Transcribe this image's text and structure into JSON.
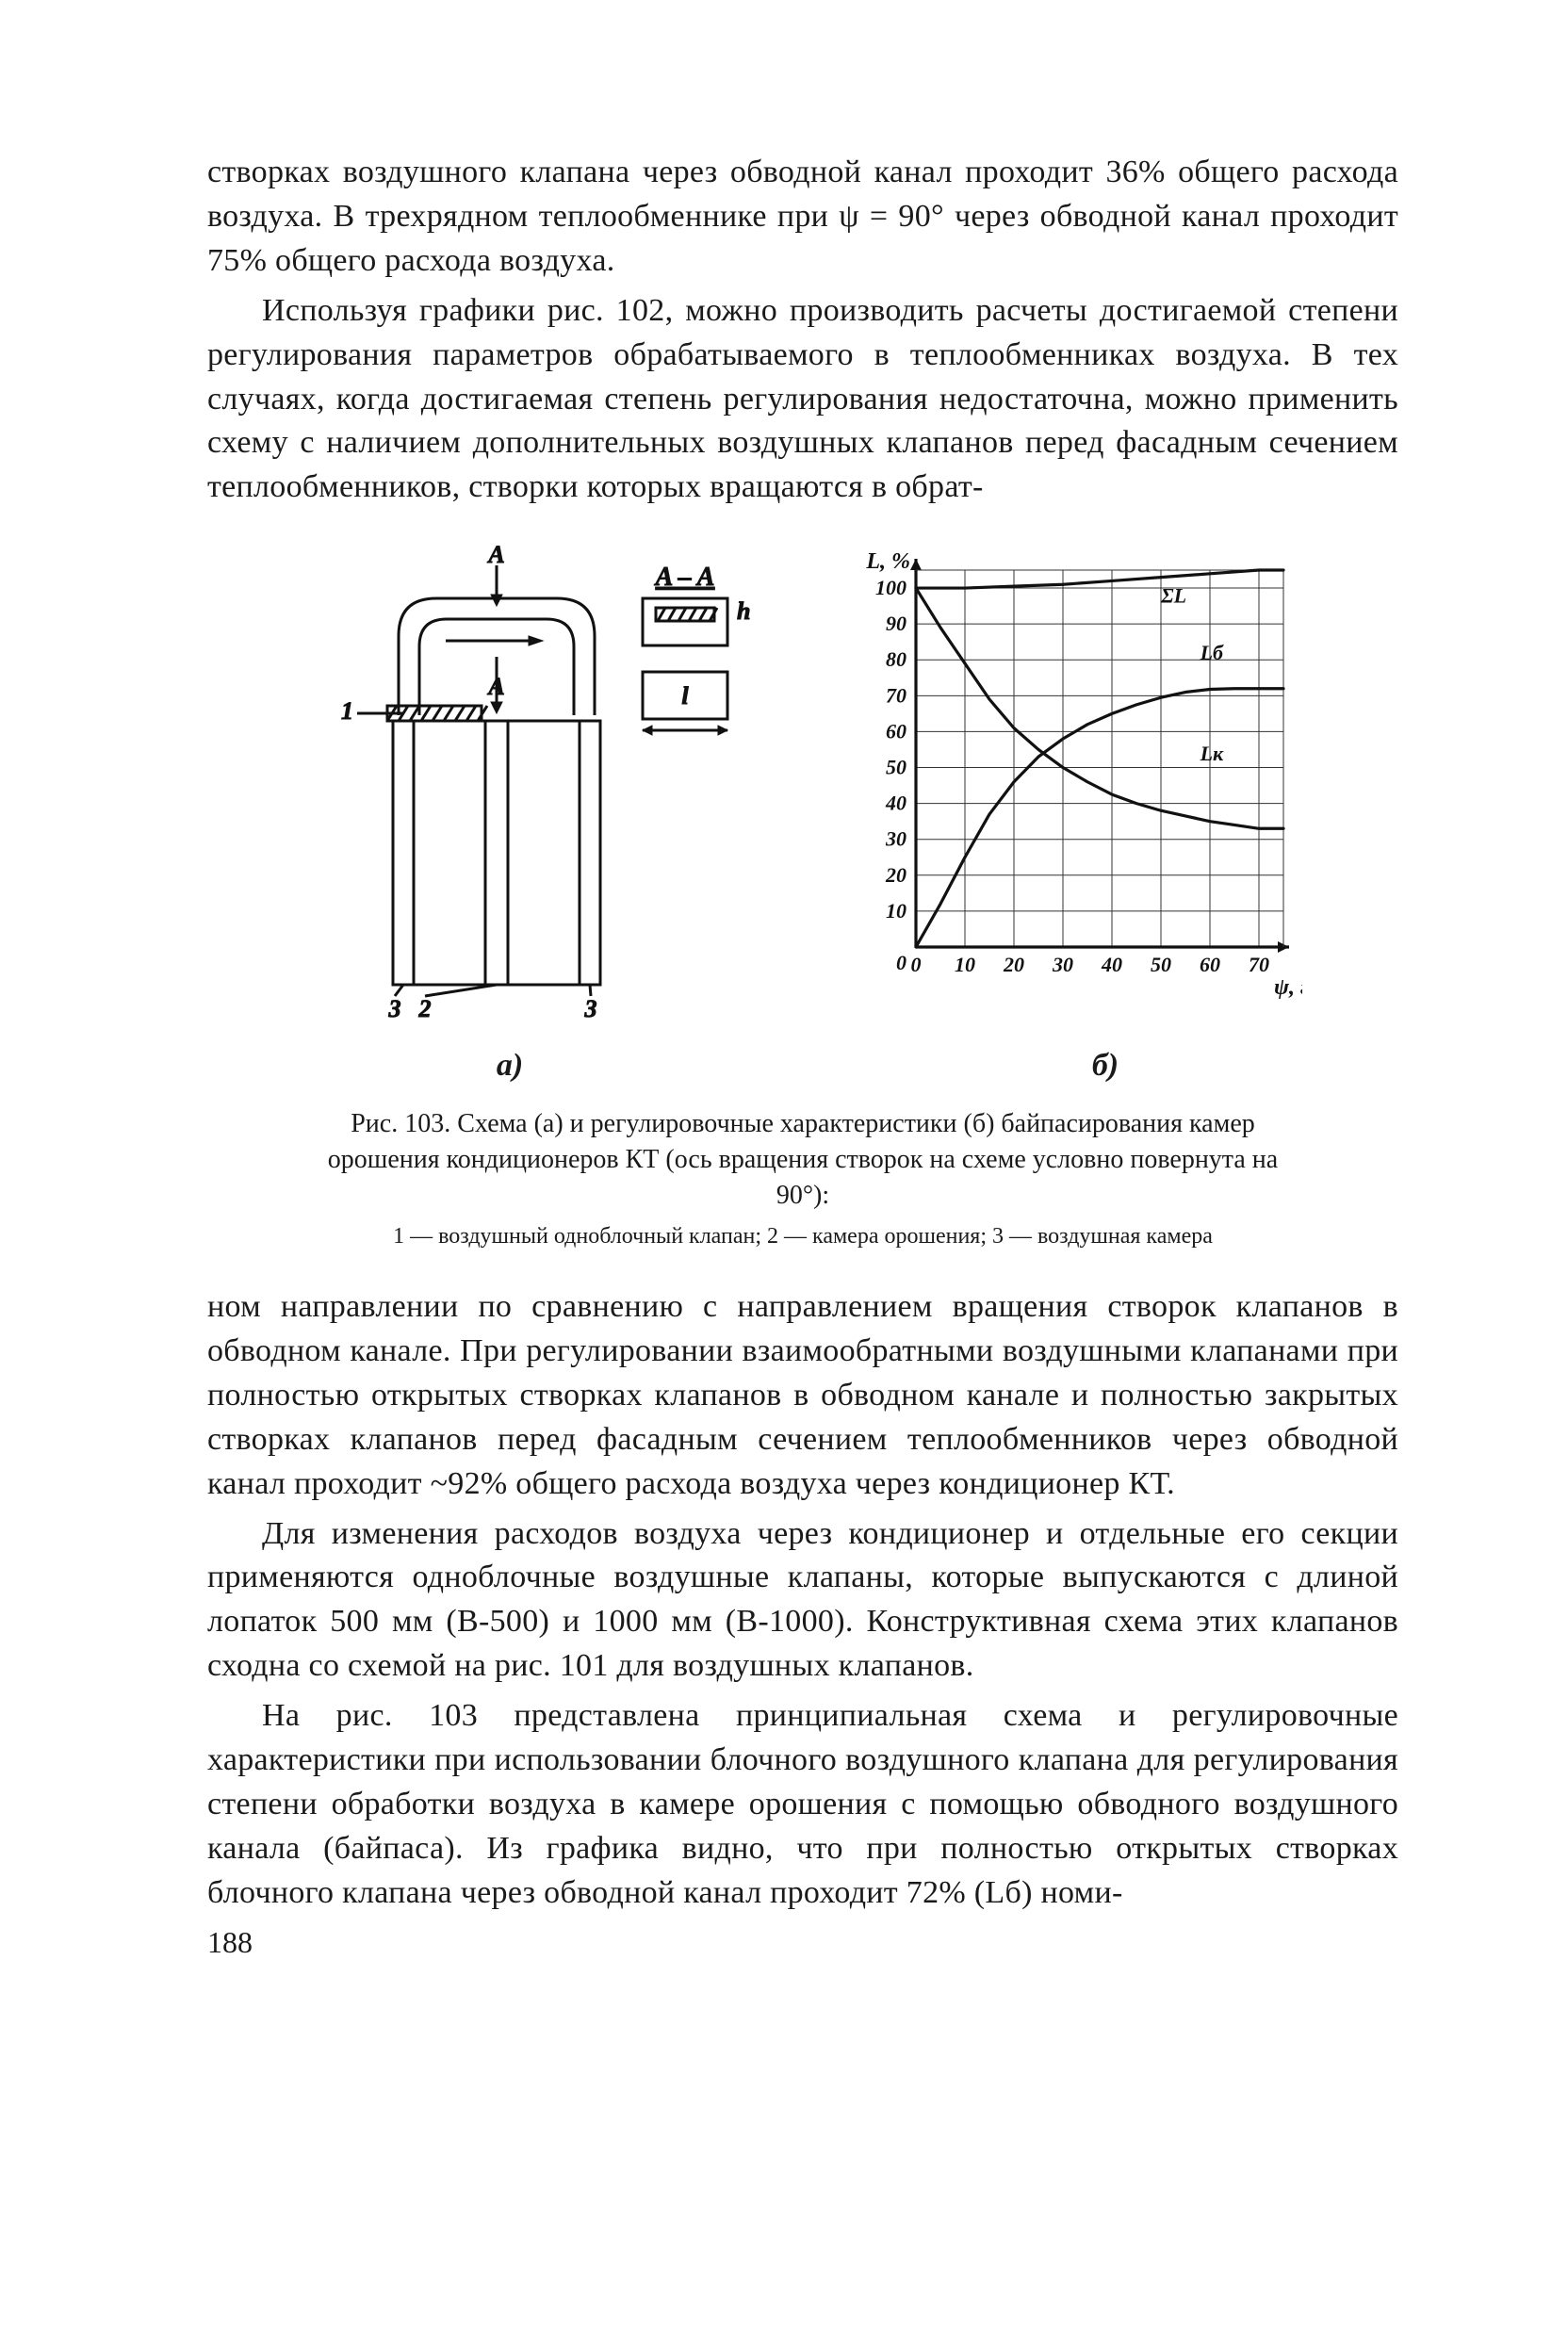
{
  "text": {
    "p1": "створках воздушного клапана через обводной канал проходит 36% общего расхода воздуха. В трехрядном теплообменнике при ψ = 90° через обводной канал проходит 75% общего расхода воздуха.",
    "p2": "Используя графики рис. 102, можно производить расчеты достигаемой степени регулирования параметров обрабатываемого в теплообменниках воздуха. В тех случаях, когда достигаемая степень регулирования недостаточна, можно применить схему с наличием дополнительных воздушных клапанов перед фасадным сечением теплообменников, створки которых вращаются в обрат-",
    "p3": "ном направлении по сравнению с направлением вращения створок клапанов в обводном канале. При регулировании взаимообратными воздушными клапанами при полностью открытых створках клапанов в обводном канале и полностью закрытых створках клапанов перед фасадным сечением теплообменников через обводной канал проходит ~92% общего расхода воздуха через кондиционер КТ.",
    "p4": "Для изменения расходов воздуха через кондиционер и отдельные его секции применяются одноблочные воздушные клапаны, которые выпускаются с длиной лопаток 500 мм (В-500) и 1000 мм (В-1000). Конструктивная схема этих клапанов сходна со схемой на рис. 101 для воздушных клапанов.",
    "p5": "На рис. 103 представлена принципиальная схема и регулировочные характеристики при использовании блочного воздушного клапана для регулирования степени обработки воздуха в камере орошения с помощью обводного воздушного канала (байпаса). Из графика видно, что при полностью открытых створках блочного клапана через обводной канал проходит 72% (Lб) номи-",
    "pagenum": "188"
  },
  "figure": {
    "sub_a": "а)",
    "sub_b": "б)",
    "caption": "Рис. 103. Схема (а) и регулировочные характеристики (б) байпасирования камер орошения кондиционеров КТ (ось вращения створок на схеме условно повернута на 90°):",
    "legend": "1 — воздушный одноблочный клапан; 2 — камера орошения; 3 — воздушная камера"
  },
  "diagram": {
    "section_label": "A – A",
    "top_label": "A",
    "callout_1": "1",
    "callout_2": "2",
    "callout_3a": "3",
    "callout_3b": "3",
    "inset_top": "h",
    "inset_bot": "l",
    "stroke": "#111111",
    "line_w": 3
  },
  "chart": {
    "type": "line",
    "y_axis_title": "L, %",
    "x_axis_title": "ψ, град",
    "x_ticks": [
      0,
      10,
      20,
      30,
      40,
      50,
      60,
      70
    ],
    "y_ticks": [
      10,
      20,
      30,
      40,
      50,
      60,
      70,
      80,
      90,
      100
    ],
    "xlim": [
      0,
      75
    ],
    "ylim": [
      0,
      105
    ],
    "grid_color": "#333333",
    "axis_color": "#111111",
    "line_color": "#111111",
    "line_width": 3.2,
    "grid_width": 1,
    "axis_width": 3.2,
    "background_color": "#ffffff",
    "series": {
      "SigmaL": {
        "label": "ΣL",
        "points": [
          [
            0,
            100
          ],
          [
            10,
            100
          ],
          [
            20,
            100.5
          ],
          [
            30,
            101
          ],
          [
            40,
            102
          ],
          [
            50,
            103
          ],
          [
            60,
            104
          ],
          [
            70,
            105
          ],
          [
            75,
            105
          ]
        ]
      },
      "L_b": {
        "label": "Lб",
        "points": [
          [
            0,
            0
          ],
          [
            5,
            12
          ],
          [
            10,
            25
          ],
          [
            15,
            37
          ],
          [
            20,
            46
          ],
          [
            25,
            53
          ],
          [
            30,
            58
          ],
          [
            35,
            62
          ],
          [
            40,
            65
          ],
          [
            45,
            67.5
          ],
          [
            50,
            69.5
          ],
          [
            55,
            71
          ],
          [
            60,
            71.8
          ],
          [
            65,
            72
          ],
          [
            70,
            72
          ],
          [
            75,
            72
          ]
        ]
      },
      "L_k": {
        "label": "Lк",
        "points": [
          [
            0,
            100
          ],
          [
            5,
            89
          ],
          [
            10,
            79
          ],
          [
            15,
            69
          ],
          [
            20,
            61
          ],
          [
            25,
            55
          ],
          [
            30,
            50
          ],
          [
            35,
            46
          ],
          [
            40,
            42.5
          ],
          [
            45,
            40
          ],
          [
            50,
            38
          ],
          [
            55,
            36.5
          ],
          [
            60,
            35
          ],
          [
            65,
            34
          ],
          [
            70,
            33
          ],
          [
            75,
            33
          ]
        ]
      }
    },
    "series_label_pos": {
      "SigmaL": [
        50,
        96
      ],
      "L_b": [
        58,
        80
      ],
      "L_k": [
        58,
        52
      ]
    }
  }
}
